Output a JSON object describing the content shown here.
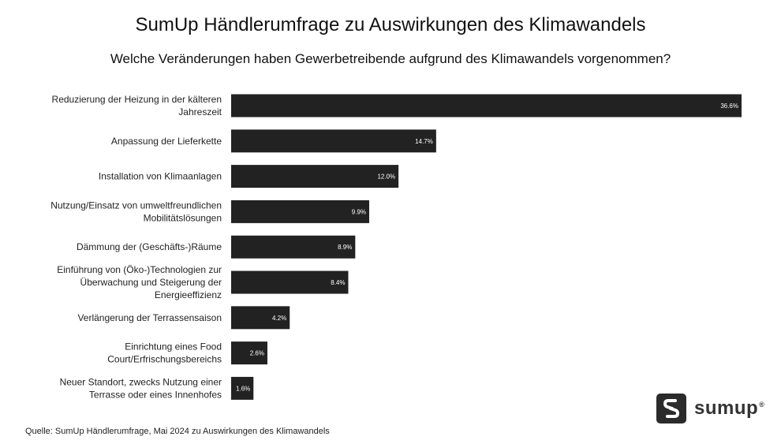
{
  "title": "SumUp Händlerumfrage zu Auswirkungen des Klimawandels",
  "subtitle": "Welche Veränderungen haben Gewerbetreibende aufgrund des Klimawandels vorgenommen?",
  "source": "Quelle: SumUp Händlerumfrage, Mai 2024 zu Auswirkungen des Klimawandels",
  "logo": {
    "text": "sumup",
    "reg": "®",
    "icon": "sumup-logo-icon"
  },
  "colors": {
    "bar": "#222222",
    "value_label": "#ffffff"
  },
  "chart_data": {
    "type": "bar",
    "orientation": "horizontal",
    "categories": [
      [
        "Reduzierung der Heizung in der kälteren",
        "Jahreszeit"
      ],
      [
        "Anpassung der Lieferkette"
      ],
      [
        "Installation von Klimaanlagen"
      ],
      [
        "Nutzung/Einsatz von umweltfreundlichen",
        "Mobilitätslösungen"
      ],
      [
        "Dämmung der (Geschäfts-)Räume"
      ],
      [
        "Einführung von (Öko-)Technologien zur",
        "Überwachung und Steigerung der",
        "Energieeffizienz"
      ],
      [
        "Verlängerung der Terrassensaison"
      ],
      [
        "Einrichtung eines Food",
        "Court/Erfrischungsbereichs"
      ],
      [
        "Neuer Standort, zwecks Nutzung einer",
        "Terrasse oder eines Innenhofes"
      ]
    ],
    "values": [
      36.6,
      14.7,
      12.0,
      9.9,
      8.9,
      8.4,
      4.2,
      2.6,
      1.6
    ],
    "value_labels": [
      "36.6%",
      "14.7%",
      "12.0%",
      "9.9%",
      "8.9%",
      "8.4%",
      "4.2%",
      "2.6%",
      "1.6%"
    ],
    "unit": "%",
    "xlim": [
      0,
      36.6
    ],
    "grid": false,
    "legend": "none"
  }
}
